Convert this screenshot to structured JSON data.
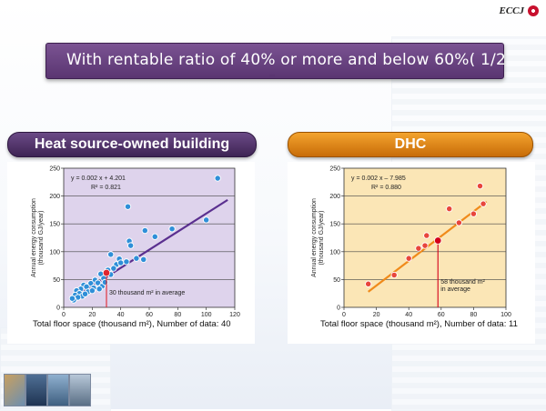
{
  "logo": {
    "text": "ECCJ"
  },
  "title": "With rentable ratio of 40% or more and below 60%( 1/2",
  "chart_data": [
    {
      "type": "scatter",
      "banner": "Heat source-owned building",
      "bg": "#ded3ec",
      "line_color": "#5a2f8f",
      "point_color": "#2f8fd8",
      "average_color": "#e0262f",
      "xlim": [
        0,
        120
      ],
      "ylim": [
        0,
        250
      ],
      "xticks": [
        0,
        20,
        40,
        60,
        80,
        100,
        120
      ],
      "yticks": [
        0,
        50,
        100,
        150,
        200,
        250
      ],
      "ylabel": [
        "Annual energy consumption",
        "(thousand GJ/year)"
      ],
      "xlabel": "Total floor space (thousand m²), Number of data: 40",
      "equation": "y = 0.002 x + 4.201",
      "r2": "R² = 0.821",
      "fit": {
        "x": [
          5,
          115
        ],
        "y": [
          14,
          193
        ]
      },
      "average": {
        "x": 30,
        "y": 62,
        "label": "30 thousand m² in average"
      },
      "points": [
        {
          "x": 108,
          "y": 232
        },
        {
          "x": 45,
          "y": 181
        },
        {
          "x": 100,
          "y": 157
        },
        {
          "x": 57,
          "y": 138
        },
        {
          "x": 46,
          "y": 119
        },
        {
          "x": 64,
          "y": 127
        },
        {
          "x": 47,
          "y": 111
        },
        {
          "x": 76,
          "y": 141
        },
        {
          "x": 33,
          "y": 95
        },
        {
          "x": 39,
          "y": 87
        },
        {
          "x": 51,
          "y": 88
        },
        {
          "x": 44,
          "y": 82
        },
        {
          "x": 56,
          "y": 86
        },
        {
          "x": 37,
          "y": 77
        },
        {
          "x": 31,
          "y": 67
        },
        {
          "x": 26,
          "y": 60
        },
        {
          "x": 28,
          "y": 52
        },
        {
          "x": 33,
          "y": 59
        },
        {
          "x": 22,
          "y": 49
        },
        {
          "x": 24,
          "y": 44
        },
        {
          "x": 19,
          "y": 43
        },
        {
          "x": 14,
          "y": 40
        },
        {
          "x": 16,
          "y": 37
        },
        {
          "x": 21,
          "y": 35
        },
        {
          "x": 12,
          "y": 33
        },
        {
          "x": 9,
          "y": 30
        },
        {
          "x": 11,
          "y": 25
        },
        {
          "x": 13,
          "y": 20
        },
        {
          "x": 8,
          "y": 22
        },
        {
          "x": 17,
          "y": 28
        },
        {
          "x": 10,
          "y": 18
        },
        {
          "x": 7,
          "y": 13
        },
        {
          "x": 6,
          "y": 16
        },
        {
          "x": 27,
          "y": 38
        },
        {
          "x": 29,
          "y": 45
        },
        {
          "x": 20,
          "y": 30
        },
        {
          "x": 15,
          "y": 24
        },
        {
          "x": 25,
          "y": 33
        },
        {
          "x": 35,
          "y": 70
        },
        {
          "x": 40,
          "y": 80
        }
      ]
    },
    {
      "type": "scatter",
      "banner": "DHC",
      "bg": "#fbe6b6",
      "line_color": "#f08a1a",
      "point_color": "#e8463c",
      "average_color": "#d4001a",
      "xlim": [
        0,
        100
      ],
      "ylim": [
        0,
        250
      ],
      "xticks": [
        0,
        20,
        40,
        60,
        80,
        100
      ],
      "yticks": [
        0,
        50,
        100,
        150,
        200,
        250
      ],
      "ylabel": [
        "Annual energy consumption",
        "(thousand GJ/year)"
      ],
      "xlabel": "Total floor space (thousand m²), Number of data: 11",
      "equation": "y = 0.002 x – 7.985",
      "r2": "R² = 0.880",
      "fit": {
        "x": [
          15,
          88
        ],
        "y": [
          28,
          190
        ]
      },
      "average": {
        "x": 58,
        "y": 120,
        "label": [
          "58 thousand m²",
          "in average"
        ]
      },
      "points": [
        {
          "x": 15,
          "y": 42
        },
        {
          "x": 31,
          "y": 58
        },
        {
          "x": 40,
          "y": 88
        },
        {
          "x": 46,
          "y": 106
        },
        {
          "x": 50,
          "y": 111
        },
        {
          "x": 51,
          "y": 129
        },
        {
          "x": 65,
          "y": 177
        },
        {
          "x": 71,
          "y": 152
        },
        {
          "x": 80,
          "y": 168
        },
        {
          "x": 84,
          "y": 218
        },
        {
          "x": 86,
          "y": 186
        }
      ]
    }
  ]
}
